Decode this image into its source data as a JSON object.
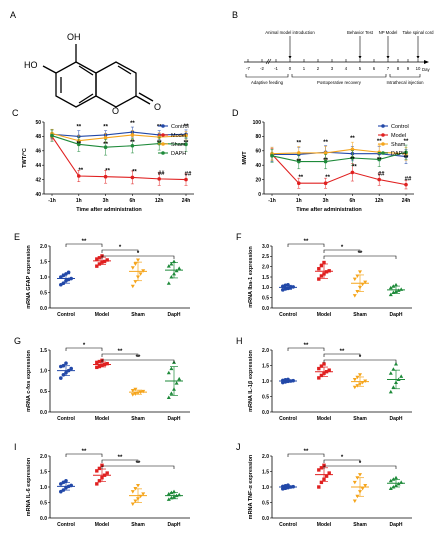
{
  "colors": {
    "control": "#2248a8",
    "model": "#e02020",
    "sham": "#f5a51c",
    "daph": "#1e8a3a"
  },
  "panel_A": {
    "letter": "A",
    "structure": "7,8-dihydroxycoumarin",
    "labels": {
      "oh1": "OH",
      "oh2": "HO",
      "o_ring": "O",
      "o_carbonyl": "O"
    }
  },
  "panel_B": {
    "letter": "B",
    "ticks": [
      "-7",
      "-2",
      "-1",
      "0",
      "1",
      "2",
      "3",
      "4",
      "5",
      "6",
      "7",
      "8",
      "9",
      "10"
    ],
    "axis_unit": "Day",
    "events": {
      "e0": "Animal model introduction",
      "e5": "Behavior Test",
      "e7": "NP Model",
      "e10": "Take spinal cord"
    },
    "phases": {
      "p1": "Adaptive feeding",
      "p2": "Postoperative recovery",
      "p3": "Intrathecal injection"
    }
  },
  "chart_data": [
    {
      "panel": "C",
      "type": "line",
      "ylabel": "TWT/°C",
      "xlabel": "Time after administration",
      "x": [
        "-1h",
        "1h",
        "3h",
        "6h",
        "12h",
        "24h"
      ],
      "ylim": [
        40,
        50
      ],
      "yticks": [
        "40",
        "42",
        "44",
        "46",
        "48",
        "50"
      ],
      "legend_position": "top-right",
      "series": [
        {
          "name": "Control",
          "values": [
            48.3,
            48.0,
            48.2,
            48.6,
            48.2,
            48.3
          ],
          "err": [
            0.6,
            0.8,
            0.6,
            0.7,
            0.6,
            0.6
          ]
        },
        {
          "name": "Model",
          "values": [
            48.0,
            42.5,
            42.4,
            42.3,
            42.1,
            42.0
          ],
          "err": [
            0.5,
            0.8,
            0.9,
            0.9,
            0.9,
            0.8
          ]
        },
        {
          "name": "Sham",
          "values": [
            48.4,
            47.4,
            47.8,
            48.2,
            47.9,
            48.1
          ],
          "err": [
            0.6,
            0.7,
            0.6,
            0.6,
            0.6,
            0.6
          ]
        },
        {
          "name": "DAPH",
          "values": [
            48.1,
            46.9,
            46.5,
            46.7,
            47.0,
            46.9
          ],
          "err": [
            0.8,
            1.0,
            1.1,
            1.0,
            0.9,
            1.0
          ]
        }
      ],
      "annotations": [
        "**",
        "**",
        "**",
        "**",
        "**",
        "**",
        "**",
        "**",
        "**",
        "**",
        "**",
        "**",
        "##",
        "##",
        "##",
        "##",
        "##"
      ]
    },
    {
      "panel": "D",
      "type": "line",
      "ylabel": "MWT",
      "xlabel": "Time after administration",
      "x": [
        "-1h",
        "1h",
        "3h",
        "6h",
        "12h",
        "24h"
      ],
      "ylim": [
        0,
        100
      ],
      "yticks": [
        "0",
        "20",
        "40",
        "60",
        "80",
        "100"
      ],
      "legend_position": "top-right",
      "series": [
        {
          "name": "Control",
          "values": [
            55,
            55,
            58,
            56,
            56,
            52
          ],
          "err": [
            10,
            10,
            9,
            10,
            10,
            10
          ]
        },
        {
          "name": "Model",
          "values": [
            55,
            15,
            15,
            30,
            20,
            13
          ],
          "err": [
            8,
            7,
            7,
            12,
            8,
            6
          ]
        },
        {
          "name": "Sham",
          "values": [
            56,
            57,
            57,
            62,
            58,
            56
          ],
          "err": [
            9,
            9,
            9,
            10,
            10,
            9
          ]
        },
        {
          "name": "DAPH",
          "values": [
            53,
            45,
            45,
            50,
            48,
            58
          ],
          "err": [
            9,
            10,
            10,
            10,
            10,
            10
          ]
        }
      ],
      "annotations": [
        "**",
        "**",
        "**",
        "**",
        "**",
        "**",
        "**",
        "**",
        "**",
        "**",
        "**",
        "**",
        "##",
        "##",
        "##",
        "##",
        "##"
      ]
    },
    {
      "panel": "E",
      "type": "scatter",
      "ylabel": "mRNA GFAP expression",
      "categories": [
        "Control",
        "Model",
        "Sham",
        "DapH"
      ],
      "ylim": [
        0.0,
        2.0
      ],
      "yticks": [
        "0.0",
        "0.5",
        "1.0",
        "1.5",
        "2.0"
      ],
      "means": [
        0.95,
        1.52,
        1.18,
        1.22
      ],
      "sd": [
        0.15,
        0.12,
        0.3,
        0.25
      ],
      "points": [
        [
          0.75,
          0.8,
          0.88,
          0.92,
          0.95,
          1.0,
          1.05,
          1.1,
          1.15
        ],
        [
          1.35,
          1.42,
          1.48,
          1.5,
          1.55,
          1.58,
          1.62,
          1.68
        ],
        [
          0.7,
          0.85,
          1.0,
          1.1,
          1.2,
          1.3,
          1.42,
          1.55
        ],
        [
          0.8,
          1.0,
          1.1,
          1.2,
          1.28,
          1.35,
          1.42,
          1.5
        ]
      ],
      "comparisons": [
        {
          "from": 0,
          "to": 1,
          "label": "**"
        },
        {
          "from": 1,
          "to": 2,
          "label": "*"
        },
        {
          "from": 1,
          "to": 3,
          "label": "*"
        }
      ]
    },
    {
      "panel": "F",
      "type": "scatter",
      "ylabel": "mRNA Iba-1 expression",
      "categories": [
        "Control",
        "Model",
        "Sham",
        "DapH"
      ],
      "ylim": [
        0.0,
        3.0
      ],
      "yticks": [
        "0.0",
        "0.5",
        "1.0",
        "1.5",
        "2.0",
        "2.5",
        "3.0"
      ],
      "means": [
        1.0,
        1.78,
        1.2,
        0.88
      ],
      "sd": [
        0.1,
        0.35,
        0.4,
        0.18
      ],
      "points": [
        [
          0.88,
          0.92,
          0.95,
          1.0,
          1.02,
          1.05,
          1.1,
          1.12
        ],
        [
          1.4,
          1.55,
          1.65,
          1.75,
          1.8,
          1.9,
          2.05,
          2.2
        ],
        [
          0.6,
          0.8,
          1.0,
          1.15,
          1.25,
          1.4,
          1.55,
          1.75
        ],
        [
          0.65,
          0.75,
          0.8,
          0.85,
          0.9,
          0.98,
          1.05,
          1.12
        ]
      ],
      "comparisons": [
        {
          "from": 0,
          "to": 1,
          "label": "**"
        },
        {
          "from": 1,
          "to": 2,
          "label": "*"
        },
        {
          "from": 1,
          "to": 3,
          "label": "**"
        }
      ]
    },
    {
      "panel": "G",
      "type": "scatter",
      "ylabel": "mRNA c-fos expression",
      "categories": [
        "Control",
        "Model",
        "Sham",
        "DapH"
      ],
      "ylim": [
        0.0,
        1.5
      ],
      "yticks": [
        "0.0",
        "0.5",
        "1.0",
        "1.5"
      ],
      "means": [
        1.0,
        1.15,
        0.48,
        0.75
      ],
      "sd": [
        0.12,
        0.06,
        0.05,
        0.35
      ],
      "points": [
        [
          0.82,
          0.9,
          0.95,
          1.0,
          1.05,
          1.1,
          1.12,
          1.18
        ],
        [
          1.08,
          1.1,
          1.13,
          1.15,
          1.17,
          1.2,
          1.22,
          1.25
        ],
        [
          0.42,
          0.44,
          0.46,
          0.48,
          0.5,
          0.52,
          0.55
        ],
        [
          0.35,
          0.45,
          0.55,
          0.7,
          0.8,
          0.95,
          1.05,
          1.2
        ]
      ],
      "comparisons": [
        {
          "from": 0,
          "to": 1,
          "label": "*"
        },
        {
          "from": 1,
          "to": 2,
          "label": "**"
        },
        {
          "from": 1,
          "to": 3,
          "label": "**"
        }
      ]
    },
    {
      "panel": "H",
      "type": "scatter",
      "ylabel": "mRNA IL-1β expression",
      "categories": [
        "Control",
        "Model",
        "Sham",
        "DapH"
      ],
      "ylim": [
        0.0,
        2.0
      ],
      "yticks": [
        "0.0",
        "0.5",
        "1.0",
        "1.5",
        "2.0"
      ],
      "means": [
        1.0,
        1.3,
        0.98,
        1.05
      ],
      "sd": [
        0.04,
        0.15,
        0.15,
        0.3
      ],
      "points": [
        [
          0.95,
          0.97,
          0.99,
          1.0,
          1.01,
          1.02,
          1.04,
          1.05
        ],
        [
          1.1,
          1.18,
          1.25,
          1.3,
          1.35,
          1.4,
          1.48,
          1.55
        ],
        [
          0.8,
          0.85,
          0.9,
          0.95,
          1.0,
          1.05,
          1.12,
          1.2
        ],
        [
          0.65,
          0.8,
          0.95,
          1.05,
          1.15,
          1.25,
          1.38,
          1.55
        ]
      ],
      "comparisons": [
        {
          "from": 0,
          "to": 1,
          "label": "**"
        },
        {
          "from": 1,
          "to": 2,
          "label": "**"
        },
        {
          "from": 1,
          "to": 3,
          "label": "*"
        }
      ]
    },
    {
      "panel": "I",
      "type": "scatter",
      "ylabel": "mRNA IL-6 expression",
      "categories": [
        "Control",
        "Model",
        "Sham",
        "DapH"
      ],
      "ylim": [
        0.0,
        2.0
      ],
      "yticks": [
        "0.0",
        "0.5",
        "1.0",
        "1.5",
        "2.0"
      ],
      "means": [
        1.02,
        1.38,
        0.72,
        0.72
      ],
      "sd": [
        0.12,
        0.2,
        0.22,
        0.1
      ],
      "points": [
        [
          0.85,
          0.9,
          0.98,
          1.02,
          1.05,
          1.1,
          1.15,
          1.2
        ],
        [
          1.1,
          1.2,
          1.3,
          1.38,
          1.45,
          1.52,
          1.6,
          1.7
        ],
        [
          0.45,
          0.55,
          0.62,
          0.7,
          0.78,
          0.85,
          0.95,
          1.05
        ],
        [
          0.6,
          0.65,
          0.68,
          0.72,
          0.75,
          0.78,
          0.82,
          0.85
        ]
      ],
      "comparisons": [
        {
          "from": 0,
          "to": 1,
          "label": "**"
        },
        {
          "from": 1,
          "to": 2,
          "label": "**"
        },
        {
          "from": 1,
          "to": 3,
          "label": "**"
        }
      ]
    },
    {
      "panel": "J",
      "type": "scatter",
      "ylabel": "mRNA TNF-α expression",
      "categories": [
        "Control",
        "Model",
        "Sham",
        "DapH"
      ],
      "ylim": [
        0.0,
        2.0
      ],
      "yticks": [
        "0.0",
        "0.5",
        "1.0",
        "1.5",
        "2.0"
      ],
      "means": [
        1.0,
        1.4,
        1.0,
        1.12
      ],
      "sd": [
        0.04,
        0.22,
        0.3,
        0.12
      ],
      "points": [
        [
          0.94,
          0.96,
          0.98,
          1.0,
          1.01,
          1.02,
          1.04,
          1.06
        ],
        [
          1.0,
          1.15,
          1.25,
          1.35,
          1.45,
          1.55,
          1.62,
          1.7
        ],
        [
          0.55,
          0.7,
          0.85,
          0.95,
          1.05,
          1.15,
          1.3,
          1.4
        ],
        [
          0.95,
          1.0,
          1.05,
          1.1,
          1.15,
          1.2,
          1.25,
          1.3
        ]
      ],
      "comparisons": [
        {
          "from": 0,
          "to": 1,
          "label": "**"
        },
        {
          "from": 1,
          "to": 2,
          "label": "*"
        },
        {
          "from": 1,
          "to": 3,
          "label": "*"
        }
      ]
    }
  ]
}
